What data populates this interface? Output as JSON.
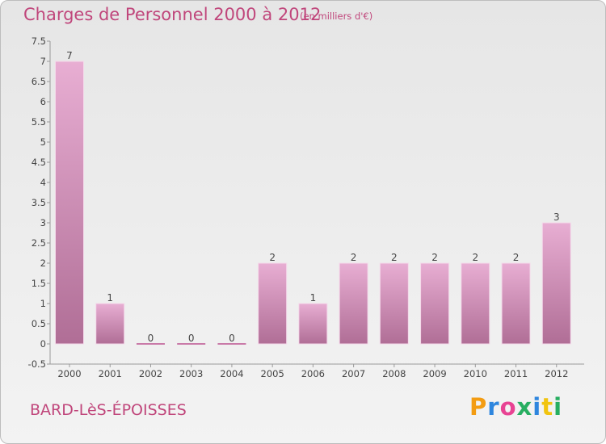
{
  "header": {
    "title": "Charges de Personnel 2000 à 2012",
    "subtitle": "(en milliers d'€)"
  },
  "footer": {
    "place": "BARD-LèS-ÉPOISSES",
    "logo_text": "Proxiti",
    "logo_colors": [
      "#f39c12",
      "#2e86de",
      "#e84393",
      "#27ae60",
      "#2e86de",
      "#f1c40f",
      "#27ae60"
    ]
  },
  "colors": {
    "title": "#c0467b",
    "bar_light": "#e8aed3",
    "bar_dark": "#b06e96",
    "zero_bar": "#c97aa8"
  },
  "chart_data": {
    "type": "bar",
    "title": "Charges de Personnel 2000 à 2012",
    "subtitle": "(en milliers d'€)",
    "categories": [
      "2000",
      "2001",
      "2002",
      "2003",
      "2004",
      "2005",
      "2006",
      "2007",
      "2008",
      "2009",
      "2010",
      "2011",
      "2012"
    ],
    "values": [
      7,
      1,
      0,
      0,
      0,
      2,
      1,
      2,
      2,
      2,
      2,
      2,
      3
    ],
    "data_labels": [
      "7",
      "1",
      "0",
      "0",
      "0",
      "2",
      "1",
      "2",
      "2",
      "2",
      "2",
      "2",
      "3"
    ],
    "ylim": [
      -0.5,
      7.5
    ],
    "yticks": [
      "-0.5",
      "0",
      "0.5",
      "1",
      "1.5",
      "2",
      "2.5",
      "3",
      "3.5",
      "4",
      "4.5",
      "5",
      "5.5",
      "6",
      "6.5",
      "7",
      "7.5"
    ],
    "xlabel": "",
    "ylabel": "",
    "grid": false,
    "legend": "none"
  }
}
